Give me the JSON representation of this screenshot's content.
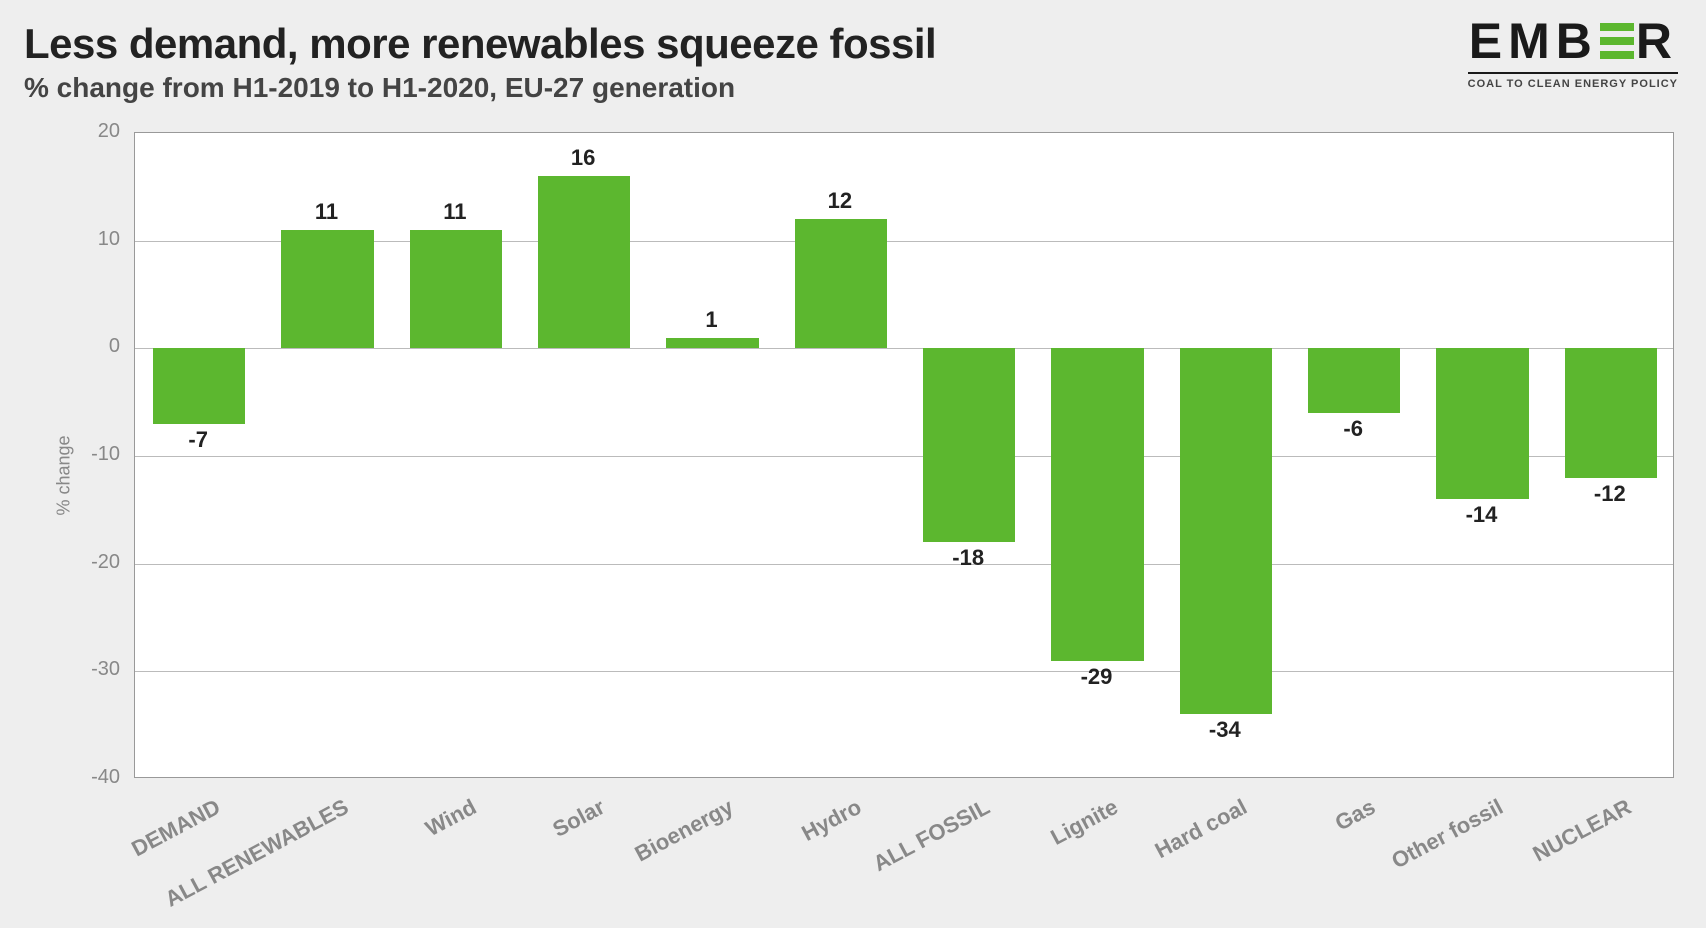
{
  "title": "Less demand, more renewables squeeze fossil",
  "subtitle": "% change from H1-2019 to H1-2020, EU-27 generation",
  "logo": {
    "text_prefix": "EMB",
    "text_suffix": "R",
    "tagline": "COAL TO CLEAN ENERGY POLICY"
  },
  "chart": {
    "type": "bar",
    "ylabel": "% change",
    "ylim": [
      -40,
      20
    ],
    "ytick_step": 10,
    "yticks": [
      -40,
      -30,
      -20,
      -10,
      0,
      10,
      20
    ],
    "categories": [
      "DEMAND",
      "ALL RENEWABLES",
      "Wind",
      "Solar",
      "Bioenergy",
      "Hydro",
      "ALL FOSSIL",
      "Lignite",
      "Hard coal",
      "Gas",
      "Other fossil",
      "NUCLEAR"
    ],
    "values": [
      -7,
      11,
      11,
      16,
      1,
      12,
      -18,
      -29,
      -34,
      -6,
      -14,
      -12
    ],
    "bar_color": "#5cb72f",
    "background_color": "#ffffff",
    "page_background": "#eeeeee",
    "grid_color": "#bbbbbb",
    "axis_color": "#999999",
    "label_color": "#888888",
    "value_label_color": "#222222",
    "title_color": "#222222",
    "subtitle_color": "#444444",
    "bar_width_ratio": 0.72,
    "title_fontsize": 42,
    "subtitle_fontsize": 28,
    "tick_fontsize": 20,
    "value_fontsize": 22,
    "category_fontsize": 22,
    "category_label_rotation_deg": -28
  }
}
